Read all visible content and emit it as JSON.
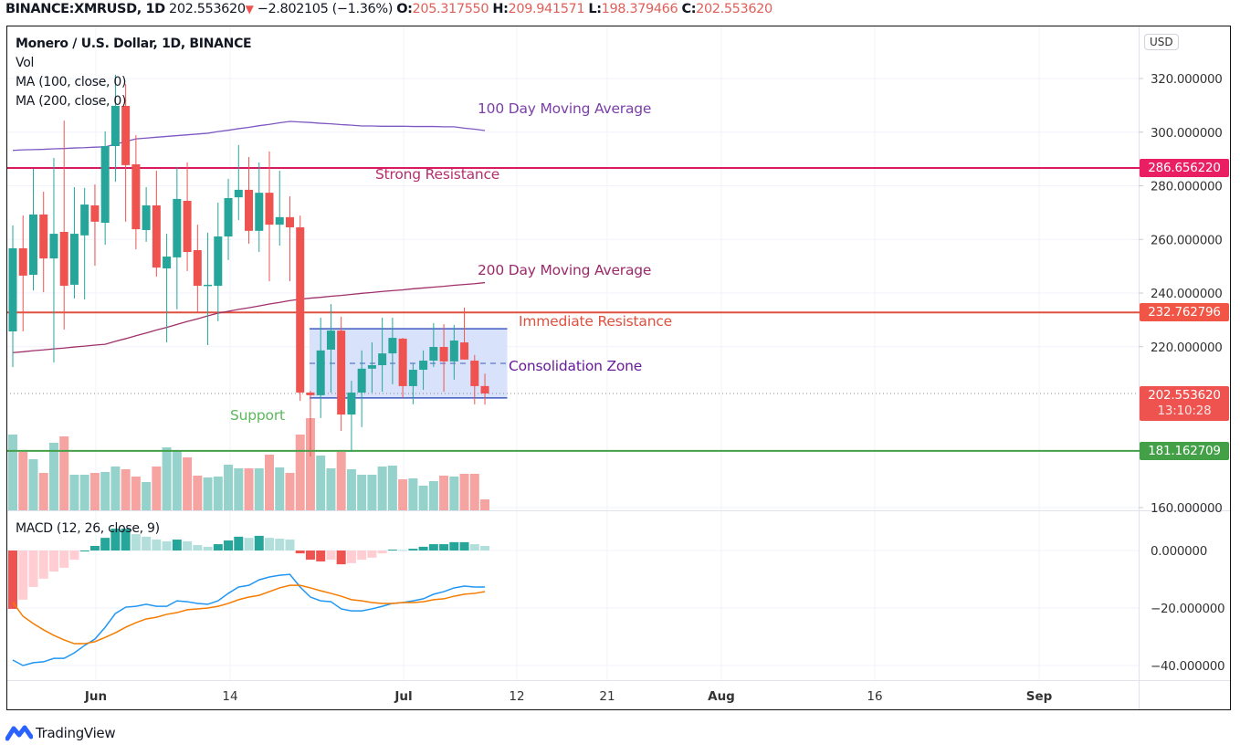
{
  "header": {
    "symbol": "BINANCE:XMRUSD, 1D",
    "last": "202.553620",
    "change": "−2.802105 (−1.36%)",
    "o_label": "O:",
    "o": "205.317550",
    "h_label": "H:",
    "h": "209.941571",
    "l_label": "L:",
    "l": "198.379466",
    "c_label": "C:",
    "c": "202.553620"
  },
  "legend": {
    "title": "Monero / U.S. Dollar, 1D, BINANCE",
    "vol": "Vol",
    "ma100": "MA (100, close, 0)",
    "ma200": "MA (200, close, 0)",
    "macd": "MACD (12, 26, close, 9)"
  },
  "currency": "USD",
  "annotations": {
    "ma100": "100 Day Moving Average",
    "ma200": "200 Day Moving Average",
    "strong_resistance": "Strong Resistance",
    "immediate_resistance": "Immediate Resistance",
    "consolidation": "Consolidation Zone",
    "support": "Support"
  },
  "price_labels": {
    "strong_resistance": "286.656220",
    "immediate_resistance": "232.762796",
    "last": "202.553620",
    "countdown": "13:10:28",
    "support": "181.162709"
  },
  "branding": "TradingView",
  "colors": {
    "up": "#26a69a",
    "down": "#ef5350",
    "vol_up": "#94d2cb",
    "vol_down": "#f5a4a1",
    "strong_resistance": "#d81b60",
    "immediate_resistance": "#e0503f",
    "support": "#43a047",
    "ma100": "#7e57c2",
    "ma200": "#a0306a",
    "macd": "#2196f3",
    "signal": "#f57c00",
    "zone_fill": "#d5dffb",
    "zone_border": "#3d5bbf"
  },
  "chart_data": {
    "type": "candlestick",
    "title": "Monero / U.S. Dollar, 1D, BINANCE",
    "x_ticks": [
      "Jun",
      "14",
      "Jul",
      "12",
      "21",
      "Aug",
      "16",
      "Sep"
    ],
    "price_ticks": [
      "320.000000",
      "300.000000",
      "280.000000",
      "260.000000",
      "240.000000",
      "220.000000",
      "160.000000"
    ],
    "price_tick_values": [
      320,
      300,
      280,
      260,
      240,
      220,
      160
    ],
    "macd_ticks": [
      "0.000000",
      "−20.000000",
      "−40.000000"
    ],
    "macd_tick_values": [
      0,
      -20,
      -40
    ],
    "levels": {
      "strong_resistance": 286.65622,
      "immediate_resistance": 232.762796,
      "last": 202.55362,
      "support": 181.162709
    },
    "consolidation_zone": {
      "from_bar": 29,
      "to_bar": 48,
      "top": 226.7,
      "bottom": 200.9,
      "mid": 213.8
    },
    "ohlc": [
      [
        225.7,
        265.2,
        212.4,
        256.7
      ],
      [
        256.7,
        268.9,
        225.7,
        246.5
      ],
      [
        246.8,
        286.3,
        241.0,
        269.3
      ],
      [
        269.3,
        277.8,
        240.3,
        252.9
      ],
      [
        252.9,
        290.4,
        214.1,
        262.1
      ],
      [
        262.8,
        304.3,
        226.4,
        242.7
      ],
      [
        243.1,
        279.5,
        238.0,
        262.1
      ],
      [
        261.5,
        279.2,
        237.6,
        273.0
      ],
      [
        272.7,
        280.5,
        250.2,
        266.6
      ],
      [
        266.2,
        300.3,
        258.0,
        294.8
      ],
      [
        294.8,
        321.4,
        281.5,
        309.8
      ],
      [
        309.8,
        318.0,
        266.6,
        287.7
      ],
      [
        288.0,
        298.9,
        256.3,
        263.8
      ],
      [
        263.5,
        279.5,
        259.1,
        272.7
      ],
      [
        272.7,
        285.6,
        246.1,
        249.5
      ],
      [
        249.2,
        262.1,
        221.6,
        253.6
      ],
      [
        253.3,
        287.0,
        233.9,
        275.1
      ],
      [
        274.4,
        288.7,
        248.2,
        255.3
      ],
      [
        256.0,
        265.5,
        232.9,
        242.7
      ],
      [
        243.1,
        262.5,
        220.6,
        243.1
      ],
      [
        242.7,
        273.7,
        229.5,
        261.1
      ],
      [
        261.1,
        282.6,
        252.3,
        275.4
      ],
      [
        275.7,
        295.2,
        267.2,
        278.5
      ],
      [
        278.5,
        290.7,
        258.4,
        263.2
      ],
      [
        263.2,
        288.7,
        255.3,
        277.4
      ],
      [
        277.4,
        292.8,
        244.4,
        265.5
      ],
      [
        265.5,
        285.6,
        257.7,
        268.3
      ],
      [
        268.3,
        276.1,
        244.4,
        264.5
      ],
      [
        264.5,
        268.9,
        199.8,
        202.9
      ],
      [
        202.9,
        203.5,
        179.1,
        201.9
      ],
      [
        201.9,
        230.8,
        193.4,
        218.6
      ],
      [
        218.9,
        235.9,
        202.9,
        226.0
      ],
      [
        226.0,
        231.2,
        188.6,
        194.7
      ],
      [
        194.7,
        207.3,
        180.8,
        202.9
      ],
      [
        202.9,
        218.6,
        190.0,
        211.8
      ],
      [
        211.8,
        221.6,
        202.9,
        213.1
      ],
      [
        213.1,
        230.8,
        203.2,
        217.5
      ],
      [
        217.5,
        230.8,
        206.0,
        223.3
      ],
      [
        223.0,
        223.3,
        200.9,
        205.3
      ],
      [
        205.3,
        213.8,
        198.5,
        211.4
      ],
      [
        211.4,
        218.6,
        203.9,
        214.8
      ],
      [
        214.8,
        228.8,
        212.4,
        219.9
      ],
      [
        219.9,
        228.4,
        203.2,
        214.5
      ],
      [
        214.5,
        228.1,
        207.7,
        222.3
      ],
      [
        221.6,
        234.6,
        215.2,
        215.2
      ],
      [
        214.8,
        216.9,
        198.5,
        205.3
      ],
      [
        205.32,
        209.94,
        198.38,
        202.55
      ]
    ],
    "volume_relative": [
      83,
      64,
      56,
      41,
      74,
      81,
      39,
      39,
      41,
      42,
      48,
      45,
      37,
      31,
      48,
      69,
      65,
      58,
      38,
      36,
      37,
      50,
      46,
      46,
      46,
      61,
      47,
      41,
      83,
      101,
      60,
      46,
      64,
      45,
      39,
      39,
      48,
      49,
      34,
      35,
      27,
      32,
      38,
      37,
      40,
      40,
      12
    ],
    "ma100": [
      293.2,
      293.4,
      293.5,
      293.6,
      293.8,
      293.9,
      294.1,
      294.2,
      294.4,
      294.5,
      295.5,
      296.5,
      297.5,
      297.8,
      298.1,
      298.4,
      298.7,
      299.0,
      299.3,
      299.6,
      300.2,
      300.7,
      301.3,
      301.8,
      302.4,
      302.9,
      303.5,
      304.0,
      303.8,
      303.6,
      303.3,
      303.1,
      302.8,
      302.6,
      302.3,
      302.3,
      302.2,
      302.2,
      302.2,
      302.1,
      302.1,
      302.1,
      302.0,
      302.0,
      301.5,
      301.1,
      300.6
    ],
    "ma200": [
      217.8,
      218.1,
      218.5,
      218.8,
      219.2,
      219.5,
      219.9,
      220.2,
      220.6,
      220.9,
      222.0,
      223.0,
      224.1,
      225.1,
      226.2,
      227.2,
      228.3,
      229.4,
      230.4,
      231.5,
      232.5,
      233.2,
      233.9,
      234.5,
      235.2,
      235.9,
      236.5,
      237.2,
      237.7,
      238.1,
      238.4,
      238.8,
      239.1,
      239.5,
      239.9,
      240.2,
      240.6,
      240.9,
      241.2,
      241.6,
      241.9,
      242.2,
      242.5,
      242.9,
      243.2,
      243.5,
      243.9
    ],
    "macd_hist": [
      -20.3,
      -17.1,
      -12.7,
      -9.8,
      -7.3,
      -6.0,
      -3.2,
      0.0,
      1.6,
      4.4,
      7.6,
      7.6,
      5.7,
      4.8,
      3.8,
      3.2,
      3.8,
      3.2,
      1.9,
      1.3,
      2.2,
      3.5,
      4.8,
      4.4,
      5.1,
      4.4,
      4.1,
      3.8,
      -1.0,
      -3.2,
      -3.8,
      -3.2,
      -4.8,
      -4.4,
      -3.2,
      -2.5,
      -1.0,
      0.3,
      0.2,
      0.6,
      1.3,
      2.2,
      2.2,
      2.9,
      2.9,
      2.2,
      1.6
    ],
    "macd_line": [
      -38.1,
      -40.0,
      -39.0,
      -38.7,
      -37.5,
      -37.5,
      -35.6,
      -33.0,
      -30.8,
      -26.7,
      -21.9,
      -19.7,
      -19.4,
      -18.7,
      -19.4,
      -19.4,
      -17.5,
      -17.8,
      -18.4,
      -18.7,
      -17.5,
      -14.9,
      -12.7,
      -12.1,
      -10.2,
      -9.2,
      -8.6,
      -8.3,
      -12.7,
      -16.2,
      -17.5,
      -17.8,
      -20.3,
      -21.0,
      -21.0,
      -20.3,
      -19.4,
      -18.4,
      -18.1,
      -17.5,
      -16.8,
      -15.2,
      -14.3,
      -13.0,
      -12.4,
      -12.7,
      -12.7
    ],
    "signal_line": [
      -18.0,
      -22.9,
      -25.4,
      -27.6,
      -29.5,
      -31.1,
      -32.4,
      -32.4,
      -31.7,
      -30.2,
      -28.6,
      -26.7,
      -25.1,
      -23.8,
      -23.2,
      -22.2,
      -21.6,
      -20.6,
      -20.3,
      -20.0,
      -19.4,
      -18.4,
      -17.1,
      -16.2,
      -15.6,
      -14.3,
      -13.0,
      -12.1,
      -12.1,
      -13.0,
      -14.0,
      -14.9,
      -15.9,
      -17.1,
      -17.5,
      -18.1,
      -18.4,
      -18.4,
      -18.1,
      -18.1,
      -17.8,
      -17.1,
      -16.8,
      -15.9,
      -15.2,
      -14.9,
      -14.3
    ]
  }
}
